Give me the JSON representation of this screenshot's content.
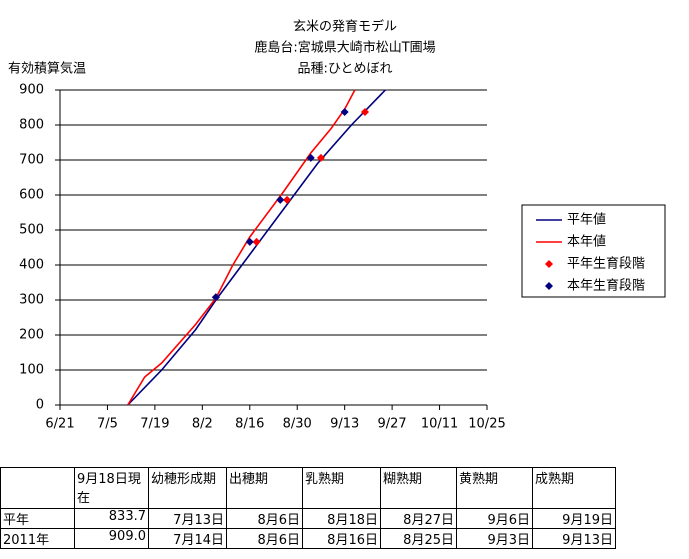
{
  "chart_data": {
    "type": "line",
    "title": [
      "玄米の発育モデル",
      "鹿島台:宮城県大崎市松山T圃場",
      "品種:ひとめぼれ"
    ],
    "y_label": "有効積算気温",
    "xlim": [
      "6/21",
      "10/25"
    ],
    "xticks": [
      "6/21",
      "7/5",
      "7/19",
      "8/2",
      "8/16",
      "8/30",
      "9/13",
      "9/27",
      "10/11",
      "10/25"
    ],
    "ylim": [
      0,
      900
    ],
    "yticks": [
      0,
      100,
      200,
      300,
      400,
      500,
      600,
      700,
      800,
      900
    ],
    "grid": true,
    "legend": "right",
    "series": [
      {
        "name": "平年値",
        "style": "line",
        "color": "#000080",
        "x": [
          "7/11",
          "7/21",
          "7/31",
          "8/6",
          "8/16",
          "8/26",
          "9/5",
          "9/15",
          "9/25"
        ],
        "values": [
          0,
          100,
          215,
          300,
          430,
          560,
          690,
          800,
          900
        ]
      },
      {
        "name": "本年値",
        "style": "line",
        "color": "#ff0000",
        "x": [
          "7/11",
          "7/16",
          "7/21",
          "7/31",
          "8/6",
          "8/11",
          "8/16",
          "8/26",
          "9/3",
          "9/9",
          "9/13",
          "9/16"
        ],
        "values": [
          0,
          80,
          120,
          230,
          305,
          400,
          480,
          610,
          720,
          790,
          845,
          900
        ]
      },
      {
        "name": "平年生育段階",
        "style": "marker",
        "color": "#ff0000",
        "x": [
          "8/6",
          "8/18",
          "8/27",
          "9/6",
          "9/19"
        ],
        "values": [
          308,
          466,
          586,
          706,
          837
        ]
      },
      {
        "name": "本年生育段階",
        "style": "marker",
        "color": "#000080",
        "x": [
          "8/6",
          "8/16",
          "8/25",
          "9/3",
          "9/13"
        ],
        "values": [
          308,
          466,
          586,
          706,
          837
        ]
      }
    ]
  },
  "table": {
    "header": [
      "9月18日現在",
      "幼穂形成期",
      "出穂期",
      "乳熟期",
      "糊熟期",
      "黄熟期",
      "成熟期"
    ],
    "rows": [
      [
        "平年",
        "833.7",
        "7月13日",
        "8月6日",
        "8月18日",
        "8月27日",
        "9月6日",
        "9月19日"
      ],
      [
        "2011年",
        "909.0",
        "7月14日",
        "8月6日",
        "8月16日",
        "8月25日",
        "9月3日",
        "9月13日"
      ]
    ]
  }
}
